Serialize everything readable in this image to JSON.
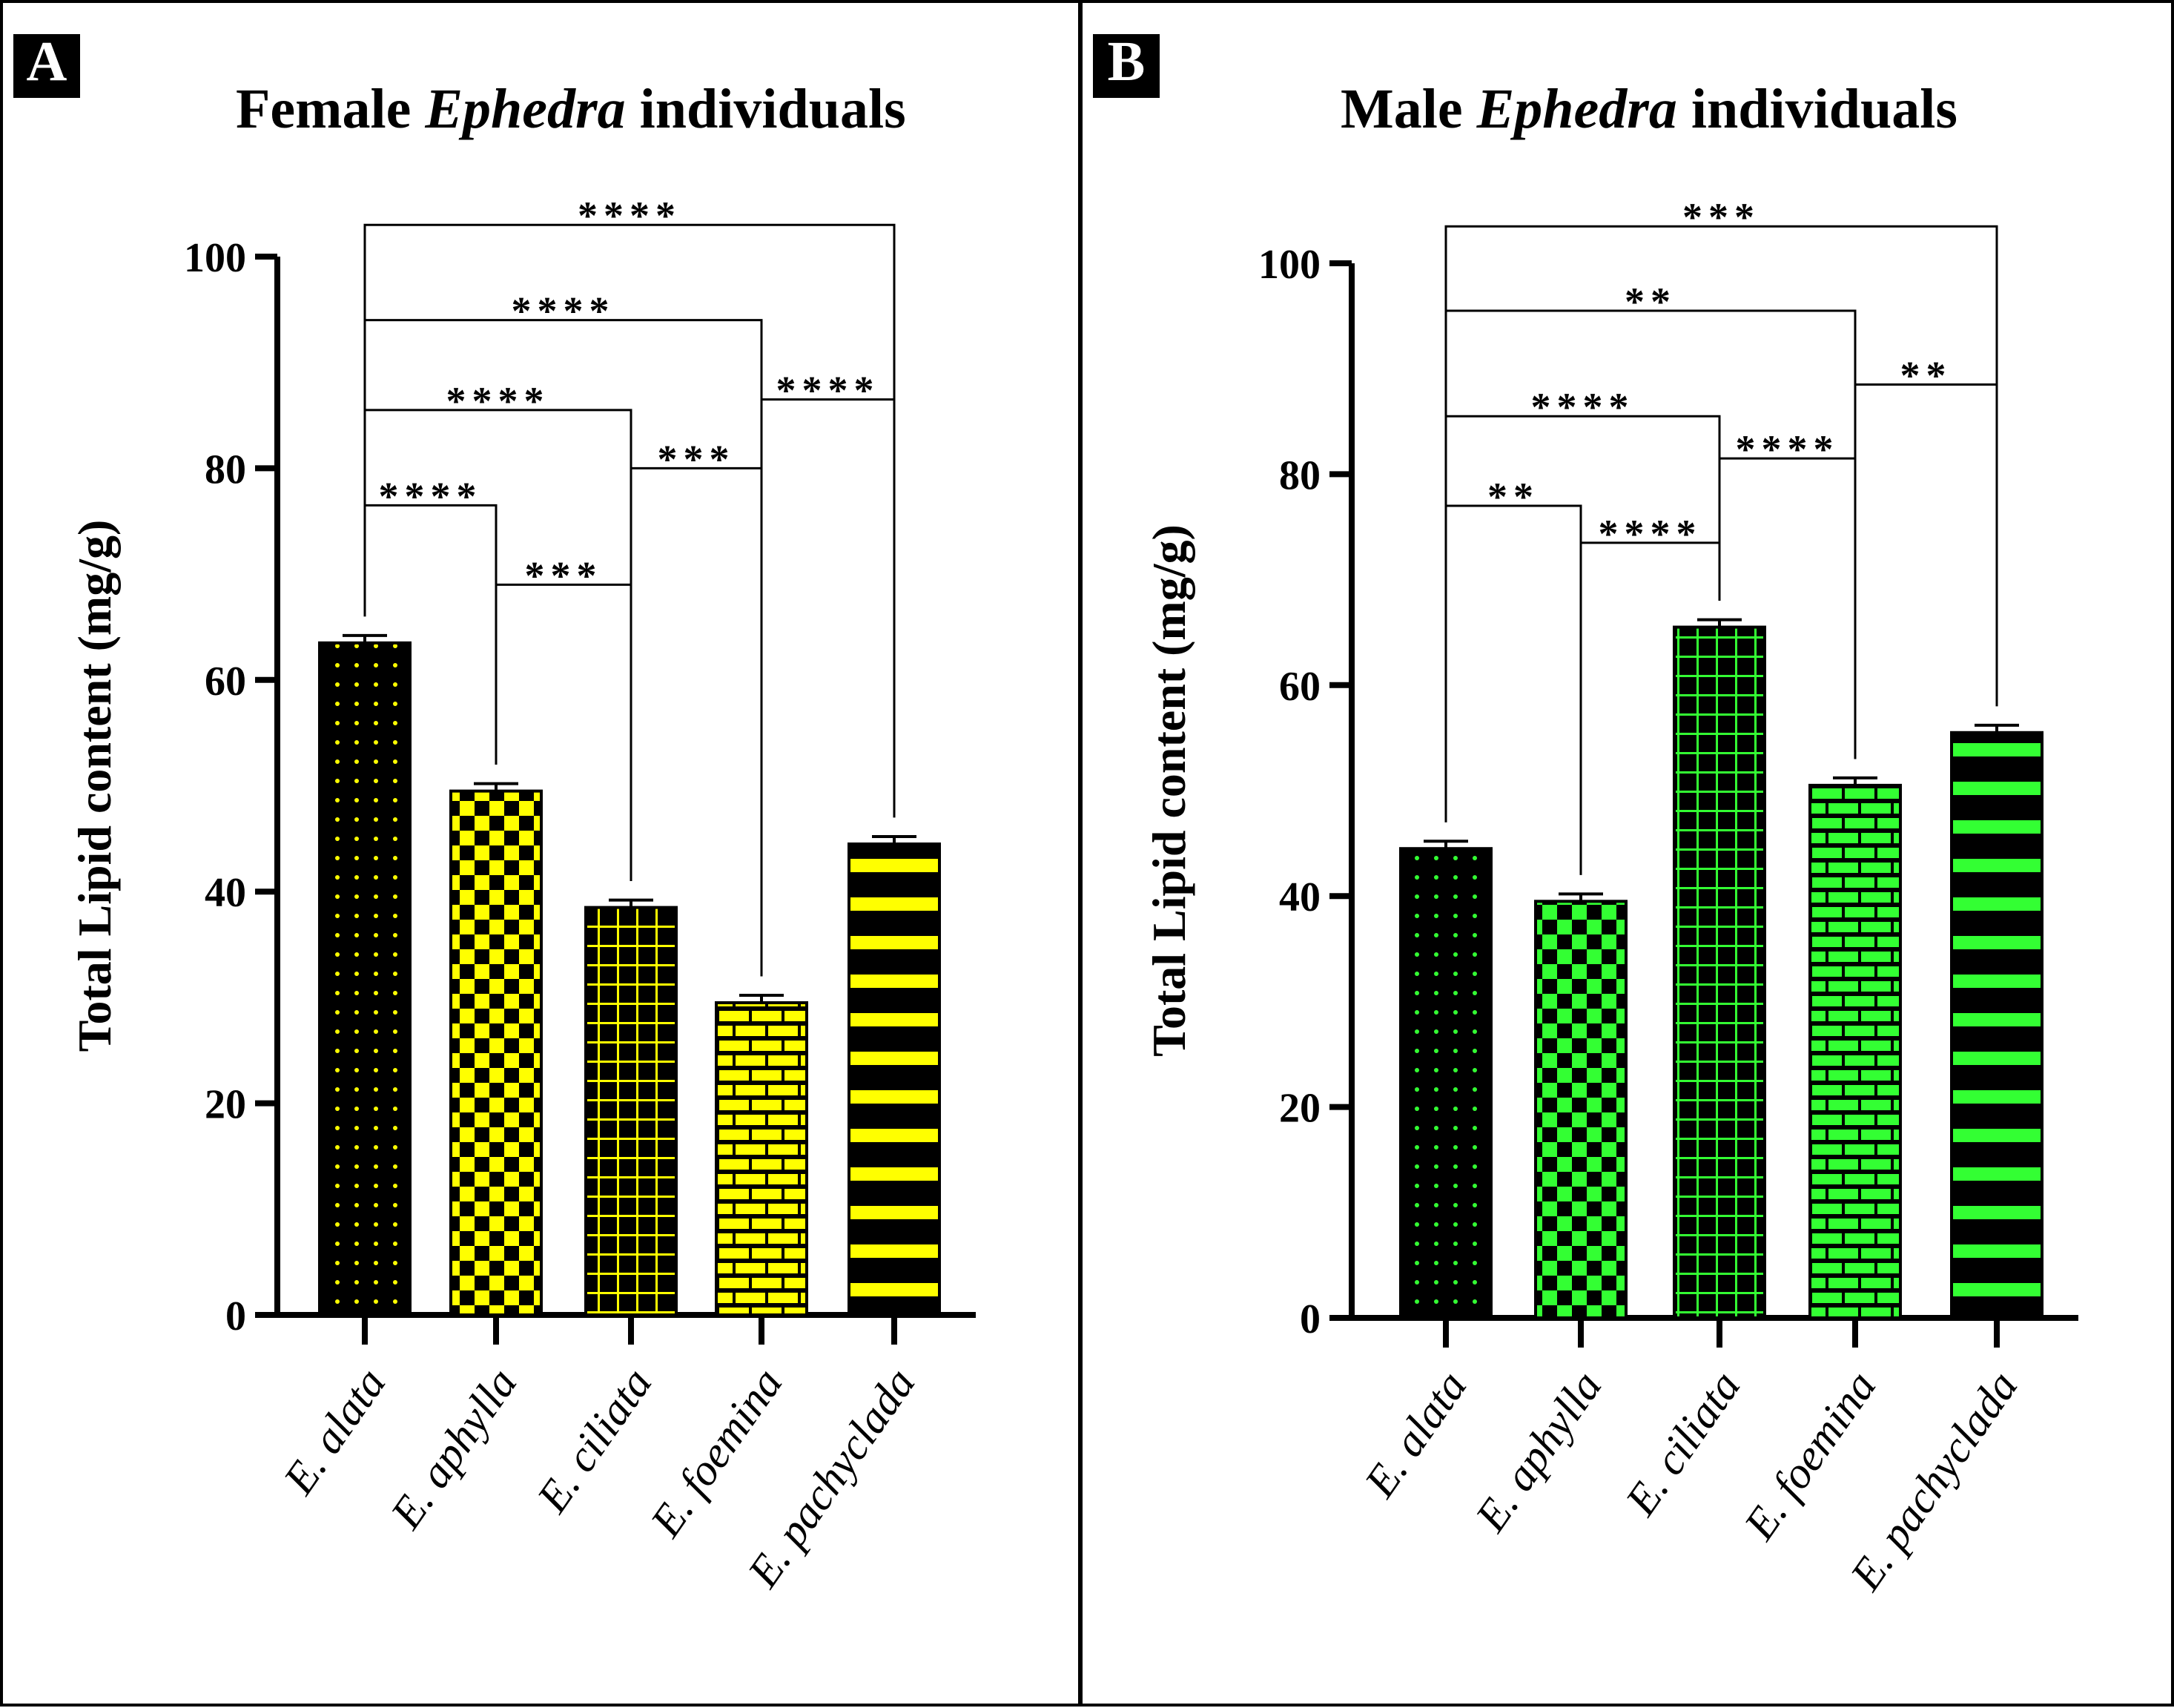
{
  "chart_data": [
    {
      "type": "bar",
      "panel_label": "A",
      "title_parts": [
        "Female ",
        "Ephedra",
        " individuals"
      ],
      "title": "Female Ephedra individuals",
      "ylabel": "Total Lipid content (mg/g)",
      "xlabel": "",
      "ylim": [
        0,
        100
      ],
      "yticks": [
        "0",
        "20",
        "40",
        "60",
        "80",
        "100"
      ],
      "categories": [
        "E. alata",
        "E. aphylla",
        "E. ciliata",
        "E. foemina",
        "E. pachyclada"
      ],
      "values": [
        63.5,
        49.5,
        38.5,
        29.5,
        44.5
      ],
      "errors": [
        0.7,
        0.7,
        0.7,
        0.7,
        0.7
      ],
      "bar_color": "#ffff00",
      "patterns": [
        "dots",
        "checker",
        "grid",
        "brick",
        "stripes"
      ],
      "significance": [
        {
          "from": 0,
          "to": 1,
          "y": 76.5,
          "label": "****"
        },
        {
          "from": 1,
          "to": 2,
          "y": 69,
          "label": "***"
        },
        {
          "from": 0,
          "to": 2,
          "y": 85.5,
          "label": "****"
        },
        {
          "from": 2,
          "to": 3,
          "y": 80,
          "label": "***"
        },
        {
          "from": 0,
          "to": 3,
          "y": 94,
          "label": "****"
        },
        {
          "from": 3,
          "to": 4,
          "y": 86.5,
          "label": "****"
        },
        {
          "from": 0,
          "to": 4,
          "y": 103,
          "label": "****"
        }
      ]
    },
    {
      "type": "bar",
      "panel_label": "B",
      "title_parts": [
        "Male ",
        "Ephedra",
        " individuals"
      ],
      "title": "Male Ephedra individuals",
      "ylabel": "Total Lipid content (mg/g)",
      "xlabel": "",
      "ylim": [
        0,
        100
      ],
      "yticks": [
        "0",
        "20",
        "40",
        "60",
        "80",
        "100"
      ],
      "categories": [
        "E. alata",
        "E. aphylla",
        "E. ciliata",
        "E. foemina",
        "E. pachyclada"
      ],
      "values": [
        44.5,
        39.5,
        65.5,
        50.5,
        55.5
      ],
      "errors": [
        0.7,
        0.7,
        0.7,
        0.7,
        0.7
      ],
      "bar_color": "#33ff33",
      "patterns": [
        "dots",
        "checker",
        "grid",
        "brick",
        "stripes"
      ],
      "significance": [
        {
          "from": 0,
          "to": 1,
          "y": 77,
          "label": "**"
        },
        {
          "from": 1,
          "to": 2,
          "y": 73.5,
          "label": "****"
        },
        {
          "from": 0,
          "to": 2,
          "y": 85.5,
          "label": "****"
        },
        {
          "from": 2,
          "to": 3,
          "y": 81.5,
          "label": "****"
        },
        {
          "from": 0,
          "to": 3,
          "y": 95.5,
          "label": "**"
        },
        {
          "from": 3,
          "to": 4,
          "y": 88.5,
          "label": "**"
        },
        {
          "from": 0,
          "to": 4,
          "y": 103.5,
          "label": "***"
        }
      ]
    }
  ]
}
